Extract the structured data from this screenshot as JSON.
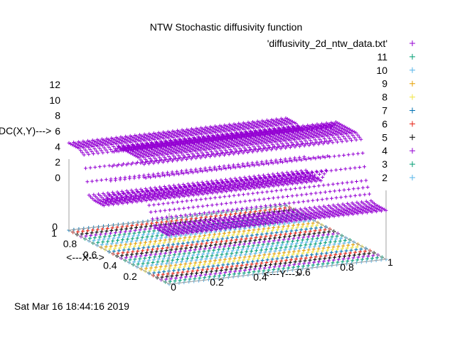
{
  "chart_data": {
    "type": "surface3d",
    "title": "NTW Stochastic diffusivity function",
    "xlabel": "<---X--->",
    "ylabel": "<---Y--->",
    "zlabel": "DC(X,Y)--->",
    "x_ticks": [
      "0",
      "0.2",
      "0.4",
      "0.6",
      "0.8",
      "1"
    ],
    "y_ticks": [
      "0",
      "0.2",
      "0.4",
      "0.6",
      "0.8",
      "1"
    ],
    "z_ticks": [
      "0",
      "2",
      "4",
      "6",
      "8",
      "10",
      "12"
    ],
    "base_z_tick": "0",
    "xlim": [
      0,
      1
    ],
    "ylim": [
      0,
      1
    ],
    "zlim": [
      0,
      12
    ],
    "legend_position": "top-right",
    "surface_profile": {
      "description_values": "DC as function of X (constant along Y)",
      "x": [
        0.0,
        0.05,
        0.1,
        0.15,
        0.2,
        0.25,
        0.3,
        0.35,
        0.4,
        0.45,
        0.5,
        0.55,
        0.6,
        0.65,
        0.7,
        0.75,
        0.8,
        0.85,
        0.9,
        0.95,
        1.0
      ],
      "z": [
        1.0,
        1.0,
        1.0,
        1.2,
        3.5,
        8.5,
        9.0,
        9.0,
        9.0,
        9.0,
        9.0,
        8.0,
        2.0,
        0.3,
        0.3,
        0.3,
        0.6,
        5.5,
        6.0,
        6.0,
        6.0
      ]
    },
    "series": [
      {
        "name": "'diffusivity_2d_ntw_data.txt'",
        "color": "#9400d3"
      },
      {
        "name": "11",
        "color": "#009e73"
      },
      {
        "name": "10",
        "color": "#56b4e9"
      },
      {
        "name": "9",
        "color": "#e69f00"
      },
      {
        "name": "8",
        "color": "#f0e442"
      },
      {
        "name": "7",
        "color": "#0072b2"
      },
      {
        "name": "6",
        "color": "#e51e10"
      },
      {
        "name": "5",
        "color": "#000000"
      },
      {
        "name": "4",
        "color": "#9400d3"
      },
      {
        "name": "3",
        "color": "#009e73"
      },
      {
        "name": "2",
        "color": "#56b4e9"
      }
    ],
    "contour_base_colors": [
      "#56b4e9",
      "#009e73",
      "#9400d3",
      "#000000",
      "#e51e10",
      "#0072b2",
      "#f0e442",
      "#e69f00",
      "#56b4e9",
      "#009e73"
    ]
  },
  "timestamp": "Sat Mar 16 18:44:16 2019"
}
